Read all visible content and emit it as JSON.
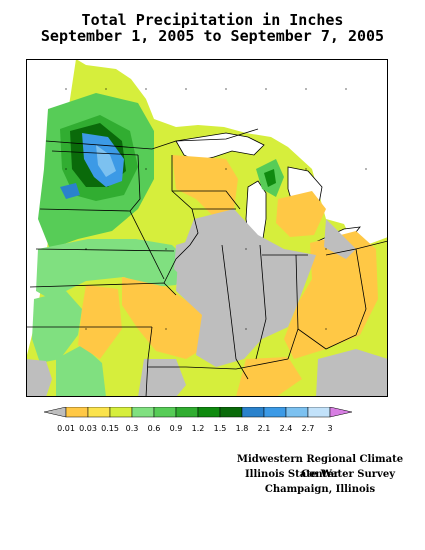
{
  "title_line1": "Total Precipitation in Inches",
  "title_line2": "September 1, 2005 to September 7, 2005",
  "legend": {
    "labels": [
      "0.01",
      "0.03",
      "0.15",
      "0.3",
      "0.6",
      "0.9",
      "1.2",
      "1.5",
      "1.8",
      "2.1",
      "2.4",
      "2.7",
      "3"
    ],
    "colors": [
      "#bebebe",
      "#ffc845",
      "#fbe34c",
      "#d6ee3c",
      "#80e080",
      "#57cc57",
      "#31ad31",
      "#0f8a0f",
      "#0a6a0a",
      "#2a82cc",
      "#3c9ae6",
      "#7cc1f0",
      "#c2e2fa",
      "#d77ee2"
    ]
  },
  "credits": {
    "line1": "Midwestern Regional Climate Center",
    "line2": "Illinois State Water Survey",
    "line3": "Champaign, Illinois"
  }
}
